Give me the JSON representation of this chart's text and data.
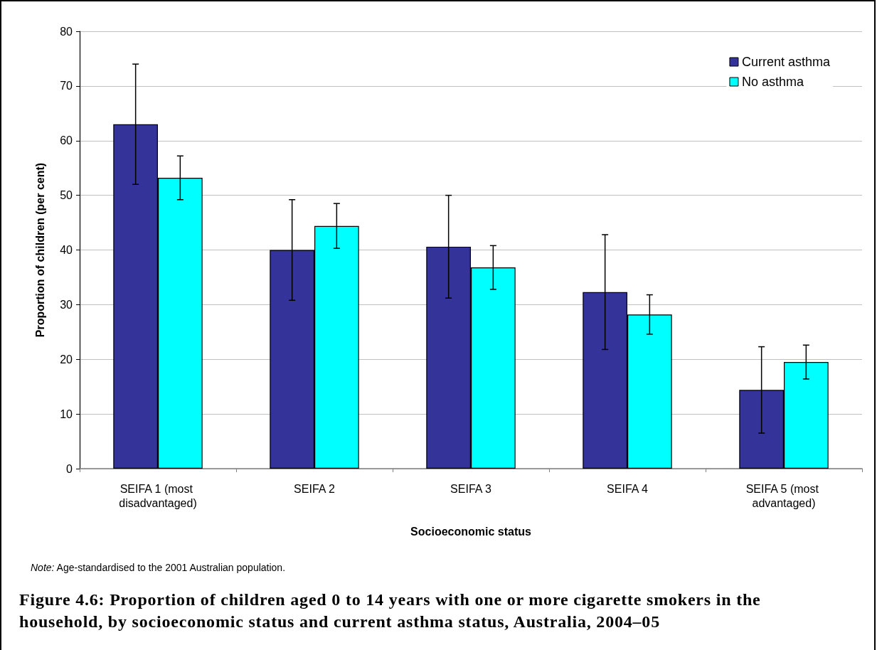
{
  "chart_data": {
    "type": "bar",
    "title": "Figure 4.6: Proportion of children aged 0 to 14 years with one or more cigarette smokers in the household, by socioeconomic status and current asthma status, Australia, 2004–05",
    "xlabel": "Socioeconomic status",
    "ylabel": "Proportion of children (per cent)",
    "annotations": [
      "Note: Age-standardised to the 2001 Australian population."
    ],
    "categories": [
      "SEIFA 1 (most disadvantaged)",
      "SEIFA 2",
      "SEIFA 3",
      "SEIFA 4",
      "SEIFA 5 (most advantaged)"
    ],
    "series": [
      {
        "name": "Current asthma",
        "color": "#333399",
        "values": [
          63.0,
          40.0,
          40.6,
          32.3,
          14.4
        ],
        "errors": [
          11.0,
          9.2,
          9.4,
          10.5,
          7.9
        ]
      },
      {
        "name": "No asthma",
        "color": "#00ffff",
        "values": [
          53.2,
          44.4,
          36.8,
          28.2,
          19.5
        ],
        "errors": [
          4.0,
          4.1,
          4.0,
          3.6,
          3.1
        ]
      }
    ],
    "ylim": [
      0,
      80
    ],
    "yticks": [
      0,
      10,
      20,
      30,
      40,
      50,
      60,
      70,
      80
    ],
    "grid": "y",
    "legend": "top right"
  }
}
